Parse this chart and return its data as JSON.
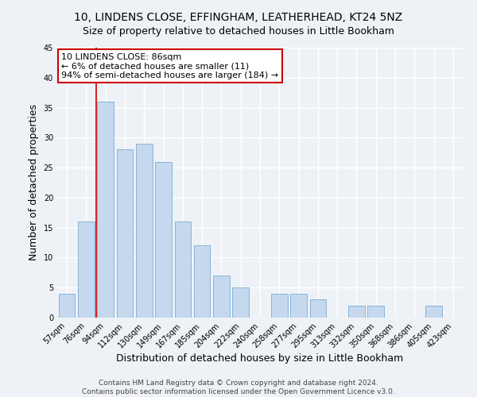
{
  "title": "10, LINDENS CLOSE, EFFINGHAM, LEATHERHEAD, KT24 5NZ",
  "subtitle": "Size of property relative to detached houses in Little Bookham",
  "xlabel": "Distribution of detached houses by size in Little Bookham",
  "ylabel": "Number of detached properties",
  "bar_labels": [
    "57sqm",
    "76sqm",
    "94sqm",
    "112sqm",
    "130sqm",
    "149sqm",
    "167sqm",
    "185sqm",
    "204sqm",
    "222sqm",
    "240sqm",
    "258sqm",
    "277sqm",
    "295sqm",
    "313sqm",
    "332sqm",
    "350sqm",
    "368sqm",
    "386sqm",
    "405sqm",
    "423sqm"
  ],
  "bar_values": [
    4,
    16,
    36,
    28,
    29,
    26,
    16,
    12,
    7,
    5,
    0,
    4,
    4,
    3,
    0,
    2,
    2,
    0,
    0,
    2,
    0
  ],
  "bar_color": "#c5d8ed",
  "bar_edge_color": "#7aadd4",
  "ylim": [
    0,
    45
  ],
  "yticks": [
    0,
    5,
    10,
    15,
    20,
    25,
    30,
    35,
    40,
    45
  ],
  "vline_color": "#cc0000",
  "vline_x_index": 2,
  "annotation_line0": "10 LINDENS CLOSE: 86sqm",
  "annotation_line1": "← 6% of detached houses are smaller (11)",
  "annotation_line2": "94% of semi-detached houses are larger (184) →",
  "annotation_box_color": "#ffffff",
  "annotation_box_edge": "#cc0000",
  "footer1": "Contains HM Land Registry data © Crown copyright and database right 2024.",
  "footer2": "Contains public sector information licensed under the Open Government Licence v3.0.",
  "background_color": "#eef2f7",
  "grid_color": "#ffffff",
  "title_fontsize": 10,
  "subtitle_fontsize": 9,
  "axis_label_fontsize": 9,
  "tick_fontsize": 7,
  "annotation_fontsize": 8,
  "footer_fontsize": 6.5
}
